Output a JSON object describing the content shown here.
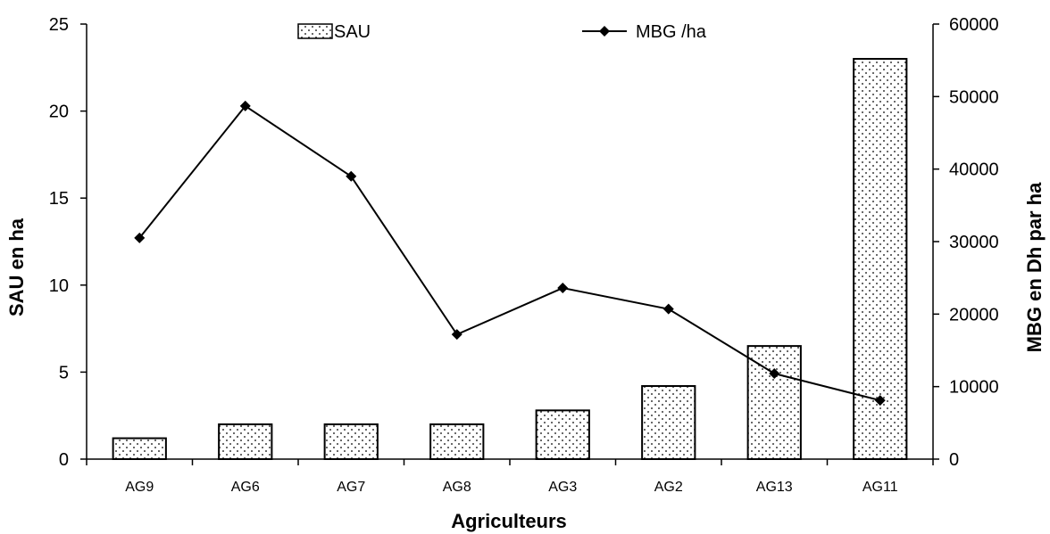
{
  "chart_data": {
    "type": "bar",
    "categories": [
      "AG9",
      "AG6",
      "AG7",
      "AG8",
      "AG3",
      "AG2",
      "AG13",
      "AG11"
    ],
    "series": [
      {
        "name": "SAU",
        "type": "bar",
        "axis": "left",
        "values": [
          1.2,
          2,
          2,
          2,
          2.8,
          4.2,
          6.5,
          23
        ]
      },
      {
        "name": "MBG /ha",
        "type": "line",
        "axis": "right",
        "values": [
          30500,
          48700,
          39000,
          17200,
          23600,
          20700,
          11800,
          8100
        ]
      }
    ],
    "xlabel": "Agriculteurs",
    "ylabel": "SAU en ha",
    "y2label": "MBG en Dh par ha",
    "ylim": [
      0,
      25
    ],
    "y2lim": [
      0,
      60000
    ],
    "yticks": [
      "0",
      "5",
      "10",
      "15",
      "20",
      "25"
    ],
    "y2ticks": [
      "0",
      "10000",
      "20000",
      "30000",
      "40000",
      "50000",
      "60000"
    ],
    "grid": false,
    "legend_position": "top",
    "colors": {
      "bar_fill": "#ffffff",
      "bar_dots": "#000000",
      "line": "#000000"
    }
  }
}
